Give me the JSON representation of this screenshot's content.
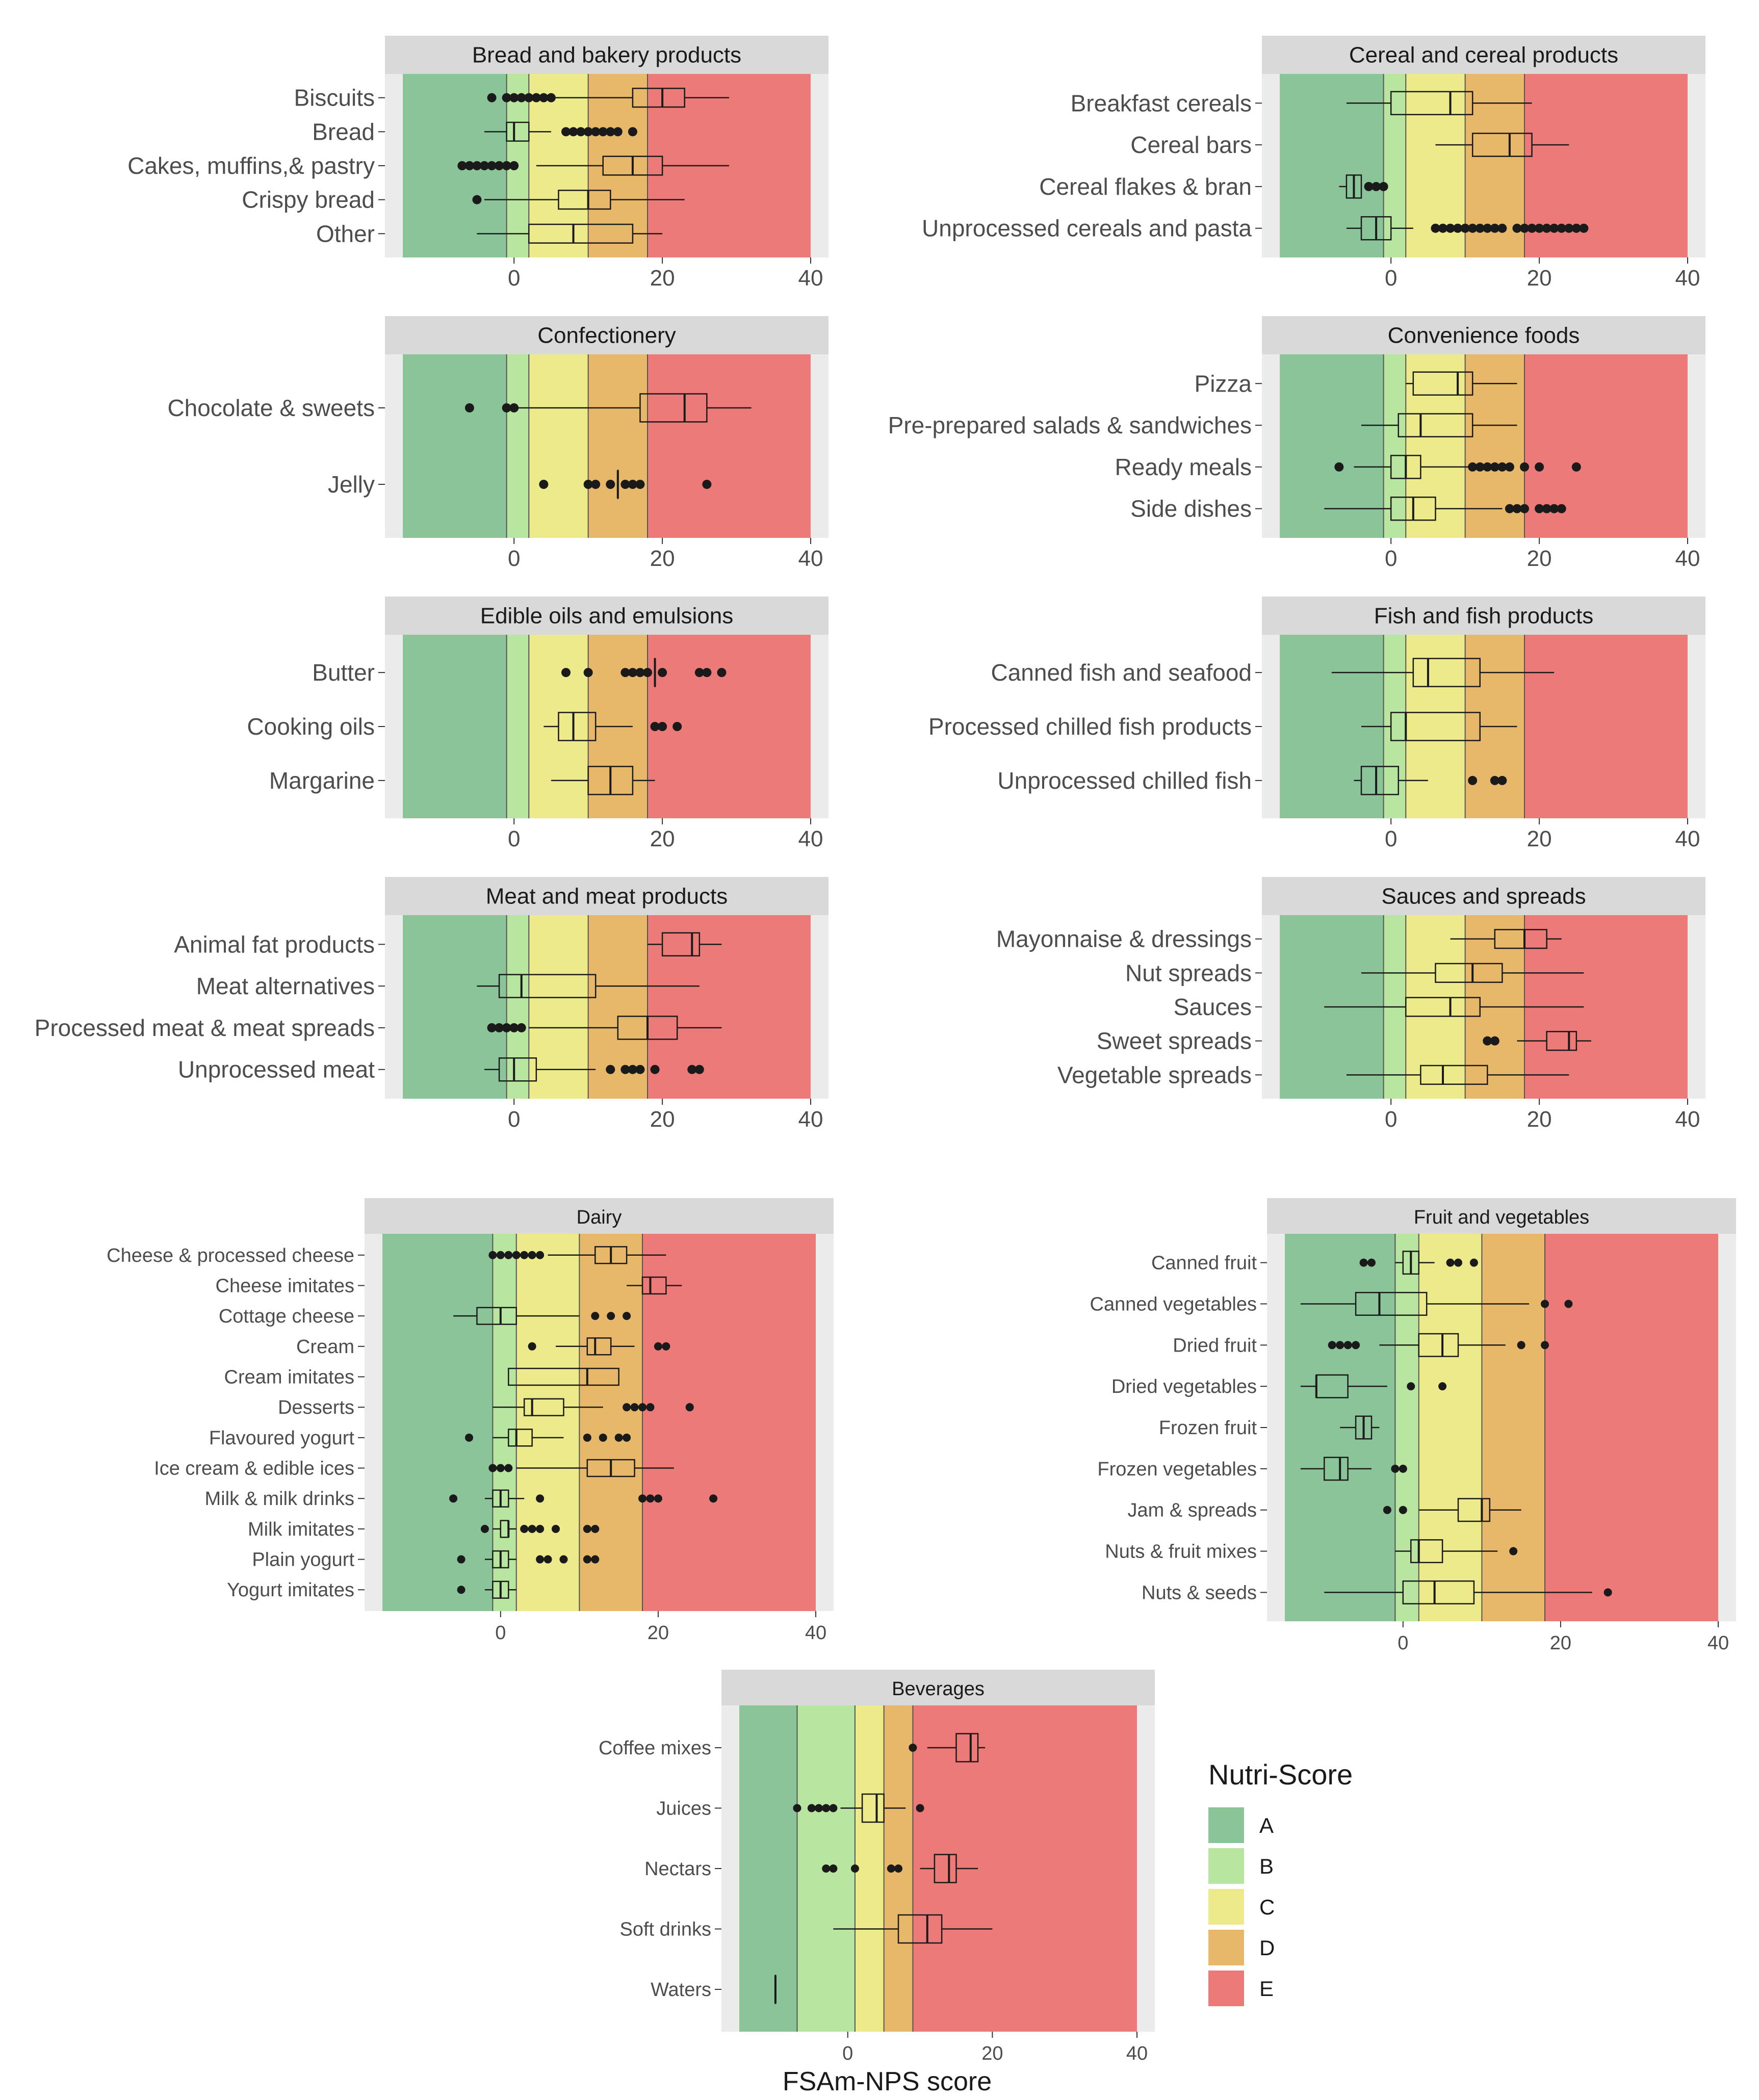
{
  "chart_data": {
    "type": "boxplot",
    "xlabel": "FSAm-NPS score",
    "legend": {
      "title": "Nutri-Score",
      "position": "right",
      "items": [
        {
          "label": "A",
          "color": "#8cc49a"
        },
        {
          "label": "B",
          "color": "#b8e6a0"
        },
        {
          "label": "C",
          "color": "#ecea8a"
        },
        {
          "label": "D",
          "color": "#e8b86a"
        },
        {
          "label": "E",
          "color": "#ec7a78"
        }
      ]
    },
    "colors": {
      "strip_bg": "#d9d9d9",
      "panel_bg": "#ebebeb",
      "line": "#1a1a1a"
    },
    "panels": [
      {
        "title": "Bread and bakery products",
        "xlim": [
          -15,
          40
        ],
        "xticks": [
          0,
          20,
          40
        ],
        "thresholds": [
          -1,
          2,
          10,
          18
        ],
        "categories": [
          {
            "label": "Biscuits",
            "q1": 16,
            "median": 20,
            "q3": 23,
            "wlo": 2,
            "whi": 29,
            "outliers": [
              -3,
              -1,
              0,
              1,
              2,
              3,
              4,
              5
            ]
          },
          {
            "label": "Bread",
            "q1": -1,
            "median": 0,
            "q3": 2,
            "wlo": -4,
            "whi": 5,
            "outliers": [
              7,
              8,
              9,
              10,
              11,
              12,
              13,
              14,
              16
            ]
          },
          {
            "label": "Cakes, muffins,& pastry",
            "q1": 12,
            "median": 16,
            "q3": 20,
            "wlo": 3,
            "whi": 29,
            "outliers": [
              -7,
              -6,
              -5,
              -4,
              -3,
              -2,
              -1,
              0
            ]
          },
          {
            "label": "Crispy bread",
            "q1": 6,
            "median": 10,
            "q3": 13,
            "wlo": -4,
            "whi": 23,
            "outliers": [
              -5
            ]
          },
          {
            "label": "Other",
            "q1": 2,
            "median": 8,
            "q3": 16,
            "wlo": -5,
            "whi": 20,
            "outliers": []
          }
        ]
      },
      {
        "title": "Cereal and cereal products",
        "xlim": [
          -15,
          40
        ],
        "xticks": [
          0,
          20,
          40
        ],
        "thresholds": [
          -1,
          2,
          10,
          18
        ],
        "categories": [
          {
            "label": "Breakfast cereals",
            "q1": 0,
            "median": 8,
            "q3": 11,
            "wlo": -6,
            "whi": 19,
            "outliers": []
          },
          {
            "label": "Cereal bars",
            "q1": 11,
            "median": 16,
            "q3": 19,
            "wlo": 6,
            "whi": 24,
            "outliers": []
          },
          {
            "label": "Cereal flakes & bran",
            "q1": -6,
            "median": -5,
            "q3": -4,
            "wlo": -7,
            "whi": -4,
            "outliers": [
              -3,
              -2,
              -1
            ]
          },
          {
            "label": "Unprocessed cereals and pasta",
            "q1": -4,
            "median": -2,
            "q3": 0,
            "wlo": -6,
            "whi": 3,
            "outliers": [
              6,
              7,
              8,
              9,
              10,
              11,
              12,
              13,
              14,
              15,
              17,
              18,
              19,
              20,
              21,
              22,
              23,
              24,
              25,
              26
            ]
          }
        ]
      },
      {
        "title": "Confectionery",
        "xlim": [
          -15,
          40
        ],
        "xticks": [
          0,
          20,
          40
        ],
        "thresholds": [
          -1,
          2,
          10,
          18
        ],
        "categories": [
          {
            "label": "Chocolate & sweets",
            "q1": 17,
            "median": 23,
            "q3": 26,
            "wlo": 0,
            "whi": 32,
            "outliers": [
              -6,
              -1,
              0
            ]
          },
          {
            "label": "Jelly",
            "q1": 14,
            "median": 14,
            "q3": 14,
            "wlo": 14,
            "whi": 14,
            "outliers": [
              4,
              10,
              11,
              13,
              15,
              16,
              17,
              26
            ]
          }
        ]
      },
      {
        "title": "Convenience foods",
        "xlim": [
          -15,
          40
        ],
        "xticks": [
          0,
          20,
          40
        ],
        "thresholds": [
          -1,
          2,
          10,
          18
        ],
        "categories": [
          {
            "label": "Pizza",
            "q1": 3,
            "median": 9,
            "q3": 11,
            "wlo": 2,
            "whi": 17,
            "outliers": []
          },
          {
            "label": "Pre-prepared salads & sandwiches",
            "q1": 1,
            "median": 4,
            "q3": 11,
            "wlo": -4,
            "whi": 17,
            "outliers": []
          },
          {
            "label": "Ready meals",
            "q1": 0,
            "median": 2,
            "q3": 4,
            "wlo": -5,
            "whi": 11,
            "outliers": [
              -7,
              11,
              12,
              13,
              14,
              15,
              16,
              18,
              20,
              25
            ]
          },
          {
            "label": "Side dishes",
            "q1": 0,
            "median": 3,
            "q3": 6,
            "wlo": -9,
            "whi": 15,
            "outliers": [
              16,
              17,
              18,
              20,
              21,
              22,
              23
            ]
          }
        ]
      },
      {
        "title": "Edible oils and emulsions",
        "xlim": [
          -15,
          40
        ],
        "xticks": [
          0,
          20,
          40
        ],
        "thresholds": [
          -1,
          2,
          10,
          18
        ],
        "categories": [
          {
            "label": "Butter",
            "q1": 19,
            "median": 19,
            "q3": 19,
            "wlo": 19,
            "whi": 19,
            "outliers": [
              7,
              10,
              15,
              16,
              17,
              18,
              20,
              25,
              26,
              28
            ]
          },
          {
            "label": "Cooking oils",
            "q1": 6,
            "median": 8,
            "q3": 11,
            "wlo": 4,
            "whi": 16,
            "outliers": [
              19,
              20,
              22
            ]
          },
          {
            "label": "Margarine",
            "q1": 10,
            "median": 13,
            "q3": 16,
            "wlo": 5,
            "whi": 19,
            "outliers": []
          }
        ]
      },
      {
        "title": "Fish and fish products",
        "xlim": [
          -15,
          40
        ],
        "xticks": [
          0,
          20,
          40
        ],
        "thresholds": [
          -1,
          2,
          10,
          18
        ],
        "categories": [
          {
            "label": "Canned fish and seafood",
            "q1": 3,
            "median": 5,
            "q3": 12,
            "wlo": -8,
            "whi": 22,
            "outliers": []
          },
          {
            "label": "Processed chilled fish products",
            "q1": 0,
            "median": 2,
            "q3": 12,
            "wlo": -4,
            "whi": 17,
            "outliers": []
          },
          {
            "label": "Unprocessed chilled fish",
            "q1": -4,
            "median": -2,
            "q3": 1,
            "wlo": -5,
            "whi": 5,
            "outliers": [
              11,
              14,
              15
            ]
          }
        ]
      },
      {
        "title": "Meat and meat products",
        "xlim": [
          -15,
          40
        ],
        "xticks": [
          0,
          20,
          40
        ],
        "thresholds": [
          -1,
          2,
          10,
          18
        ],
        "categories": [
          {
            "label": "Animal fat products",
            "q1": 20,
            "median": 24,
            "q3": 25,
            "wlo": 18,
            "whi": 28,
            "outliers": []
          },
          {
            "label": "Meat alternatives",
            "q1": -2,
            "median": 1,
            "q3": 11,
            "wlo": -5,
            "whi": 25,
            "outliers": []
          },
          {
            "label": "Processed meat & meat spreads",
            "q1": 14,
            "median": 18,
            "q3": 22,
            "wlo": 2,
            "whi": 28,
            "outliers": [
              -3,
              -2,
              -1,
              0,
              1
            ]
          },
          {
            "label": "Unprocessed meat",
            "q1": -2,
            "median": 0,
            "q3": 3,
            "wlo": -4,
            "whi": 11,
            "outliers": [
              13,
              15,
              16,
              17,
              19,
              24,
              25
            ]
          }
        ]
      },
      {
        "title": "Sauces and spreads",
        "xlim": [
          -15,
          40
        ],
        "xticks": [
          0,
          20,
          40
        ],
        "thresholds": [
          -1,
          2,
          10,
          18
        ],
        "categories": [
          {
            "label": "Mayonnaise & dressings",
            "q1": 14,
            "median": 18,
            "q3": 21,
            "wlo": 8,
            "whi": 23,
            "outliers": []
          },
          {
            "label": "Nut spreads",
            "q1": 6,
            "median": 11,
            "q3": 15,
            "wlo": -4,
            "whi": 26,
            "outliers": []
          },
          {
            "label": "Sauces",
            "q1": 2,
            "median": 8,
            "q3": 12,
            "wlo": -9,
            "whi": 26,
            "outliers": []
          },
          {
            "label": "Sweet spreads",
            "q1": 21,
            "median": 24,
            "q3": 25,
            "wlo": 17,
            "whi": 27,
            "outliers": [
              13,
              14
            ]
          },
          {
            "label": "Vegetable spreads",
            "q1": 4,
            "median": 7,
            "q3": 13,
            "wlo": -6,
            "whi": 24,
            "outliers": []
          }
        ]
      },
      {
        "title": "Dairy",
        "xlim": [
          -15,
          40
        ],
        "xticks": [
          0,
          20,
          40
        ],
        "thresholds": [
          -1,
          2,
          10,
          18
        ],
        "small": true,
        "categories": [
          {
            "label": "Cheese & processed cheese",
            "q1": 12,
            "median": 14,
            "q3": 16,
            "wlo": 6,
            "whi": 21,
            "outliers": [
              -1,
              0,
              1,
              2,
              3,
              4,
              5
            ]
          },
          {
            "label": "Cheese imitates",
            "q1": 18,
            "median": 19,
            "q3": 21,
            "wlo": 16,
            "whi": 23,
            "outliers": []
          },
          {
            "label": "Cottage cheese",
            "q1": -3,
            "median": 0,
            "q3": 2,
            "wlo": -6,
            "whi": 10,
            "outliers": [
              12,
              14,
              16
            ]
          },
          {
            "label": "Cream",
            "q1": 11,
            "median": 12,
            "q3": 14,
            "wlo": 7,
            "whi": 17,
            "outliers": [
              4,
              20,
              21
            ]
          },
          {
            "label": "Cream imitates",
            "q1": 1,
            "median": 11,
            "q3": 15,
            "wlo": 1,
            "whi": 15,
            "outliers": []
          },
          {
            "label": "Desserts",
            "q1": 3,
            "median": 4,
            "q3": 8,
            "wlo": -1,
            "whi": 13,
            "outliers": [
              16,
              17,
              18,
              19,
              24,
              24
            ]
          },
          {
            "label": "Flavoured yogurt",
            "q1": 1,
            "median": 2,
            "q3": 4,
            "wlo": -1,
            "whi": 8,
            "outliers": [
              -4,
              11,
              13,
              15,
              16
            ]
          },
          {
            "label": "Ice cream & edible ices",
            "q1": 11,
            "median": 14,
            "q3": 17,
            "wlo": 2,
            "whi": 22,
            "outliers": [
              -1,
              0,
              1
            ]
          },
          {
            "label": "Milk & milk drinks",
            "q1": -1,
            "median": 0,
            "q3": 1,
            "wlo": -2,
            "whi": 3,
            "outliers": [
              -6,
              5,
              18,
              19,
              20,
              27
            ]
          },
          {
            "label": "Milk imitates",
            "q1": 0,
            "median": 1,
            "q3": 1,
            "wlo": -1,
            "whi": 2,
            "outliers": [
              -2,
              3,
              4,
              5,
              7,
              11,
              12
            ]
          },
          {
            "label": "Plain yogurt",
            "q1": -1,
            "median": 0,
            "q3": 1,
            "wlo": -2,
            "whi": 2,
            "outliers": [
              -5,
              5,
              6,
              8,
              11,
              12
            ]
          },
          {
            "label": "Yogurt imitates",
            "q1": -1,
            "median": 0,
            "q3": 1,
            "wlo": -2,
            "whi": 2,
            "outliers": [
              -5
            ]
          }
        ]
      },
      {
        "title": "Fruit and vegetables",
        "xlim": [
          -15,
          40
        ],
        "xticks": [
          0,
          20,
          40
        ],
        "thresholds": [
          -1,
          2,
          10,
          18
        ],
        "small": true,
        "categories": [
          {
            "label": "Canned fruit",
            "q1": 0,
            "median": 1,
            "q3": 2,
            "wlo": -1,
            "whi": 4,
            "outliers": [
              -5,
              -4,
              6,
              7,
              9
            ]
          },
          {
            "label": "Canned vegetables",
            "q1": -6,
            "median": -3,
            "q3": 3,
            "wlo": -13,
            "whi": 16,
            "outliers": [
              18,
              21
            ]
          },
          {
            "label": "Dried fruit",
            "q1": 2,
            "median": 5,
            "q3": 7,
            "wlo": -3,
            "whi": 13,
            "outliers": [
              -9,
              -8,
              -7,
              -6,
              15,
              18
            ]
          },
          {
            "label": "Dried vegetables",
            "q1": -11,
            "median": -11,
            "q3": -7,
            "wlo": -13,
            "whi": -2,
            "outliers": [
              1,
              5
            ]
          },
          {
            "label": "Frozen fruit",
            "q1": -6,
            "median": -5,
            "q3": -4,
            "wlo": -8,
            "whi": -3,
            "outliers": []
          },
          {
            "label": "Frozen vegetables",
            "q1": -10,
            "median": -8,
            "q3": -7,
            "wlo": -13,
            "whi": -4,
            "outliers": [
              -1,
              0
            ]
          },
          {
            "label": "Jam & spreads",
            "q1": 7,
            "median": 10,
            "q3": 11,
            "wlo": 2,
            "whi": 15,
            "outliers": [
              -2,
              0
            ]
          },
          {
            "label": "Nuts & fruit mixes",
            "q1": 1,
            "median": 2,
            "q3": 5,
            "wlo": -1,
            "whi": 12,
            "outliers": [
              14
            ]
          },
          {
            "label": "Nuts & seeds",
            "q1": 0,
            "median": 4,
            "q3": 9,
            "wlo": -10,
            "whi": 24,
            "outliers": [
              26
            ]
          }
        ]
      },
      {
        "title": "Beverages",
        "xlim": [
          -15,
          40
        ],
        "xticks": [
          0,
          20,
          40
        ],
        "thresholds": [
          -7,
          1,
          5,
          9
        ],
        "small": true,
        "categories": [
          {
            "label": "Coffee mixes",
            "q1": 15,
            "median": 17,
            "q3": 18,
            "wlo": 11,
            "whi": 19,
            "outliers": [
              9
            ]
          },
          {
            "label": "Juices",
            "q1": 2,
            "median": 4,
            "q3": 5,
            "wlo": -1,
            "whi": 8,
            "outliers": [
              -7,
              -5,
              -4,
              -3,
              -2,
              10
            ]
          },
          {
            "label": "Nectars",
            "q1": 12,
            "median": 14,
            "q3": 15,
            "wlo": 10,
            "whi": 18,
            "outliers": [
              -3,
              -2,
              1,
              6,
              7
            ]
          },
          {
            "label": "Soft drinks",
            "q1": 7,
            "median": 11,
            "q3": 13,
            "wlo": -2,
            "whi": 20,
            "outliers": []
          },
          {
            "label": "Waters",
            "q1": -10,
            "median": -10,
            "q3": -10,
            "wlo": -10,
            "whi": -10,
            "outliers": []
          }
        ]
      }
    ]
  }
}
